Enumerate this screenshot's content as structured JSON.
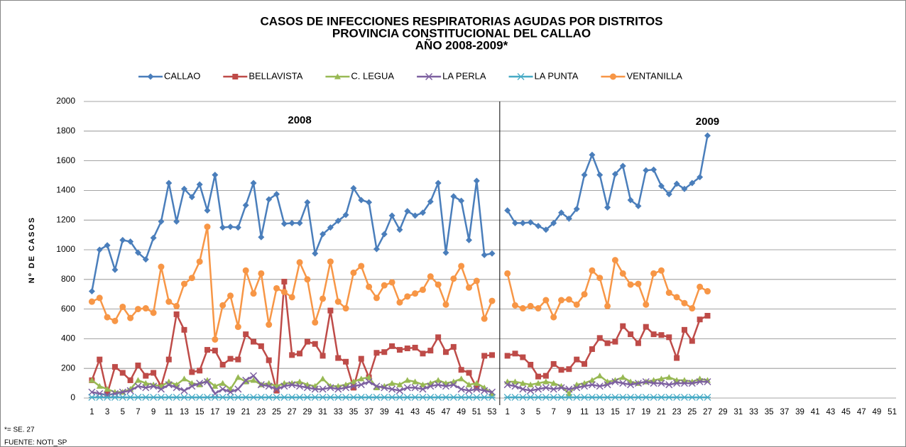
{
  "chart_data": {
    "type": "line",
    "title": [
      "CASOS DE INFECCIONES RESPIRATORIAS AGUDAS POR DISTRITOS",
      "PROVINCIA CONSTITUCIONAL DEL CALLAO",
      "AÑO 2008-2009*"
    ],
    "y_label": "Nº DE CASOS",
    "annotations": [
      "2008",
      "2009"
    ],
    "footnotes": [
      "*= SE. 27",
      "FUENTE: NOTI_SP"
    ],
    "categories": [
      "1",
      null,
      "3",
      null,
      "5",
      null,
      "7",
      null,
      "9",
      null,
      "11",
      null,
      "13",
      null,
      "15",
      null,
      "17",
      null,
      "19",
      null,
      "21",
      null,
      "23",
      null,
      "25",
      null,
      "27",
      null,
      "29",
      null,
      "31",
      null,
      "33",
      null,
      "35",
      null,
      "37",
      null,
      "39",
      null,
      "41",
      null,
      "43",
      null,
      "45",
      null,
      "47",
      null,
      "49",
      null,
      "51",
      null,
      "53",
      null,
      "1",
      null,
      "3",
      null,
      "5",
      null,
      "7",
      null,
      "9",
      null,
      "11",
      null,
      "13",
      null,
      "15",
      null,
      "17",
      null,
      "19",
      null,
      "21",
      null,
      "23",
      null,
      "25",
      null,
      "27",
      null,
      "29",
      null,
      "31",
      null,
      "33",
      null,
      "35",
      null,
      "37",
      null,
      "39",
      null,
      "41",
      null,
      "43",
      null,
      "45",
      null,
      "47",
      null,
      "49",
      null,
      "51"
    ],
    "ylim": [
      0,
      2000
    ],
    "yticks": [
      0,
      200,
      400,
      600,
      800,
      1000,
      1200,
      1400,
      1600,
      1800,
      2000
    ],
    "grid": true,
    "legend": "top",
    "series": [
      {
        "name": "CALLAO",
        "color": "#4a7ebb",
        "marker": "diamond",
        "values": [
          720,
          1000,
          1030,
          865,
          1065,
          1055,
          980,
          935,
          1080,
          1190,
          1450,
          1190,
          1410,
          1355,
          1440,
          1265,
          1505,
          1150,
          1155,
          1150,
          1300,
          1450,
          1085,
          1340,
          1375,
          1175,
          1180,
          1180,
          1320,
          975,
          1105,
          1150,
          1195,
          1235,
          1415,
          1335,
          1320,
          1005,
          1105,
          1230,
          1135,
          1260,
          1230,
          1250,
          1325,
          1450,
          980,
          1360,
          1330,
          1065,
          1465,
          965,
          975,
          null,
          1265,
          1180,
          1180,
          1185,
          1160,
          1135,
          1180,
          1250,
          1210,
          1275,
          1505,
          1640,
          1505,
          1285,
          1510,
          1565,
          1335,
          1295,
          1535,
          1540,
          1430,
          1375,
          1445,
          1410,
          1450,
          1490,
          1770,
          null,
          null,
          null,
          null,
          null,
          null,
          null,
          null,
          null,
          null,
          null,
          null,
          null,
          null,
          null,
          null,
          null,
          null,
          null,
          null,
          null,
          null,
          null,
          null
        ]
      },
      {
        "name": "BELLAVISTA",
        "color": "#be4b48",
        "marker": "square",
        "values": [
          120,
          260,
          30,
          210,
          170,
          120,
          220,
          150,
          170,
          80,
          260,
          565,
          460,
          175,
          185,
          325,
          320,
          225,
          265,
          260,
          430,
          380,
          350,
          255,
          50,
          785,
          290,
          300,
          380,
          365,
          285,
          590,
          270,
          245,
          70,
          265,
          140,
          305,
          310,
          350,
          325,
          335,
          340,
          300,
          320,
          410,
          310,
          345,
          190,
          170,
          70,
          285,
          290,
          null,
          285,
          300,
          275,
          225,
          145,
          150,
          230,
          190,
          195,
          260,
          230,
          330,
          405,
          370,
          380,
          485,
          430,
          370,
          480,
          430,
          425,
          410,
          270,
          460,
          385,
          530,
          555,
          null,
          null,
          null,
          null,
          null,
          null,
          null,
          null,
          null,
          null,
          null,
          null,
          null,
          null,
          null,
          null,
          null,
          null,
          null,
          null,
          null,
          null,
          null,
          null
        ]
      },
      {
        "name": "C. LEGUA",
        "color": "#98b954",
        "marker": "triangle",
        "values": [
          120,
          80,
          60,
          40,
          40,
          60,
          120,
          100,
          90,
          80,
          110,
          90,
          130,
          100,
          90,
          120,
          80,
          100,
          60,
          140,
          110,
          120,
          90,
          100,
          80,
          100,
          100,
          110,
          90,
          80,
          130,
          80,
          80,
          90,
          110,
          130,
          140,
          70,
          80,
          100,
          90,
          120,
          110,
          90,
          100,
          120,
          100,
          110,
          130,
          90,
          100,
          70,
          30,
          null,
          110,
          110,
          100,
          90,
          100,
          110,
          100,
          80,
          30,
          90,
          100,
          120,
          150,
          110,
          120,
          140,
          110,
          100,
          110,
          120,
          130,
          140,
          120,
          120,
          110,
          130,
          120,
          null,
          null,
          null,
          null,
          null,
          null,
          null,
          null,
          null,
          null,
          null,
          null,
          null,
          null,
          null,
          null,
          null,
          null,
          null,
          null,
          null,
          null,
          null,
          null
        ]
      },
      {
        "name": "LA PERLA",
        "color": "#7d60a0",
        "marker": "x",
        "values": [
          40,
          30,
          20,
          30,
          40,
          50,
          80,
          70,
          80,
          60,
          90,
          70,
          50,
          80,
          100,
          110,
          30,
          60,
          40,
          60,
          120,
          150,
          90,
          80,
          60,
          80,
          90,
          80,
          70,
          60,
          60,
          70,
          60,
          70,
          80,
          90,
          110,
          80,
          70,
          60,
          50,
          70,
          70,
          60,
          80,
          90,
          80,
          90,
          60,
          50,
          60,
          50,
          40,
          null,
          90,
          80,
          60,
          50,
          60,
          70,
          60,
          70,
          60,
          70,
          80,
          90,
          80,
          90,
          110,
          100,
          90,
          100,
          110,
          100,
          100,
          90,
          100,
          100,
          100,
          110,
          110,
          null,
          null,
          null,
          null,
          null,
          null,
          null,
          null,
          null,
          null,
          null,
          null,
          null,
          null,
          null,
          null,
          null,
          null,
          null,
          null,
          null,
          null,
          null,
          null
        ]
      },
      {
        "name": "LA PUNTA",
        "color": "#46aac5",
        "marker": "star",
        "values": [
          5,
          5,
          5,
          5,
          5,
          5,
          5,
          5,
          5,
          5,
          5,
          5,
          5,
          5,
          5,
          5,
          5,
          5,
          5,
          5,
          5,
          5,
          5,
          5,
          5,
          5,
          5,
          5,
          5,
          5,
          5,
          5,
          5,
          5,
          5,
          5,
          5,
          5,
          5,
          5,
          5,
          5,
          5,
          5,
          5,
          5,
          5,
          5,
          5,
          5,
          5,
          5,
          5,
          null,
          5,
          5,
          5,
          5,
          5,
          5,
          5,
          5,
          5,
          5,
          5,
          5,
          5,
          5,
          5,
          5,
          5,
          5,
          5,
          5,
          5,
          5,
          5,
          5,
          5,
          5,
          5,
          null,
          null,
          null,
          null,
          null,
          null,
          null,
          null,
          null,
          null,
          null,
          null,
          null,
          null,
          null,
          null,
          null,
          null,
          null,
          null,
          null,
          null,
          null,
          null
        ]
      },
      {
        "name": "VENTANILLA",
        "color": "#f79646",
        "marker": "circle",
        "values": [
          650,
          675,
          545,
          520,
          615,
          540,
          600,
          605,
          575,
          885,
          650,
          620,
          770,
          810,
          920,
          1155,
          395,
          625,
          690,
          480,
          860,
          705,
          840,
          495,
          740,
          715,
          680,
          915,
          800,
          510,
          670,
          920,
          650,
          605,
          845,
          890,
          750,
          675,
          760,
          780,
          645,
          685,
          705,
          730,
          820,
          765,
          630,
          805,
          890,
          745,
          790,
          535,
          655,
          null,
          840,
          625,
          605,
          620,
          605,
          660,
          545,
          660,
          665,
          630,
          700,
          860,
          810,
          620,
          930,
          840,
          765,
          770,
          630,
          840,
          860,
          710,
          680,
          640,
          605,
          750,
          720,
          null,
          null,
          null,
          null,
          null,
          null,
          null,
          null,
          null,
          null,
          null,
          null,
          null,
          null,
          null,
          null,
          null,
          null,
          null,
          null,
          null,
          null,
          null,
          null
        ]
      }
    ]
  }
}
